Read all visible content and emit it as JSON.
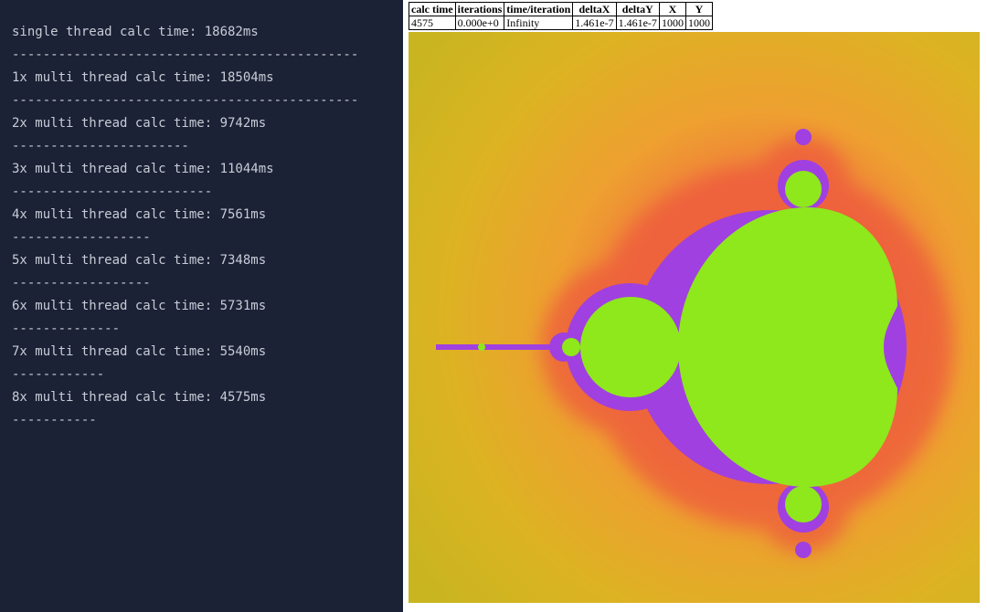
{
  "console": {
    "lines": [
      "single thread calc time: 18682ms",
      "---------------------------------------------",
      "1x multi thread calc time: 18504ms",
      "---------------------------------------------",
      "2x multi thread calc time: 9742ms",
      "-----------------------",
      "3x multi thread calc time: 11044ms",
      "--------------------------",
      "4x multi thread calc time: 7561ms",
      "------------------",
      "5x multi thread calc time: 7348ms",
      "------------------",
      "6x multi thread calc time: 5731ms",
      "--------------",
      "7x multi thread calc time: 5540ms",
      "------------",
      "8x multi thread calc time: 4575ms",
      "-----------"
    ]
  },
  "stats_table": {
    "headers": [
      "calc time",
      "iterations",
      "time/iteration",
      "deltaX",
      "deltaY",
      "X",
      "Y"
    ],
    "row": [
      "4575",
      "0.000e+0",
      "Infinity",
      "1.461e-7",
      "1.461e-7",
      "1000",
      "1000"
    ]
  },
  "colors": {
    "console_bg": "#1b2236",
    "console_text": "#c8ccd6",
    "set_fill": "#8ee81c",
    "edge": "#a040e0",
    "outer": "#d8b020",
    "halo": "#f06040"
  }
}
